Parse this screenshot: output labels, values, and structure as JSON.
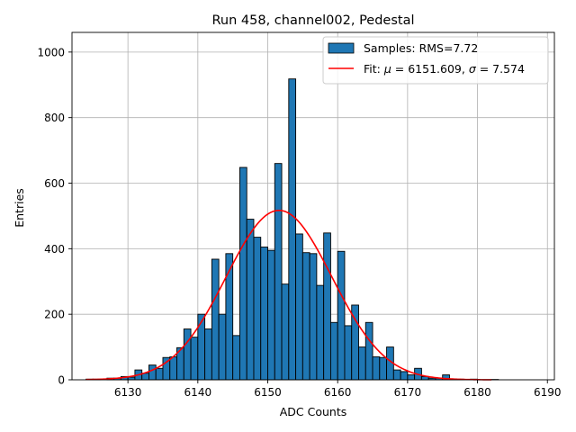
{
  "chart_data": {
    "type": "bar",
    "title": "Run 458, channel002, Pedestal",
    "xlabel": "ADC Counts",
    "ylabel": "Entries",
    "xlim": [
      6122,
      6191
    ],
    "ylim": [
      0,
      1060
    ],
    "xticks": [
      6130,
      6140,
      6150,
      6160,
      6170,
      6180,
      6190
    ],
    "yticks": [
      0,
      200,
      400,
      600,
      800,
      1000
    ],
    "grid": true,
    "legend_position": "top-right",
    "histogram": {
      "name": "Samples: RMS=7.72",
      "color": "#1f77b4",
      "edge_color": "#000000",
      "bin_start": 6124,
      "bin_width": 1,
      "counts": [
        2,
        2,
        0,
        5,
        5,
        10,
        8,
        30,
        20,
        45,
        35,
        68,
        70,
        98,
        155,
        130,
        200,
        155,
        368,
        200,
        385,
        135,
        648,
        490,
        435,
        405,
        395,
        660,
        292,
        918,
        445,
        388,
        385,
        288,
        448,
        175,
        392,
        165,
        228,
        100,
        175,
        70,
        68,
        100,
        30,
        25,
        15,
        35,
        10,
        5,
        5,
        15,
        3,
        2,
        0,
        2,
        0,
        0,
        1
      ]
    },
    "fit": {
      "name": "Fit: $\\mu$ = 6151.609, $\\sigma$ = 7.574",
      "label_prefix": "Fit: ",
      "mu_symbol": "μ",
      "sigma_symbol": "σ",
      "mu_text": " = 6151.609, ",
      "sigma_text": " = 7.574",
      "color": "#ff0000",
      "mu": 6151.609,
      "sigma": 7.574,
      "amplitude": 517,
      "x_range": [
        6124,
        6182
      ]
    }
  }
}
